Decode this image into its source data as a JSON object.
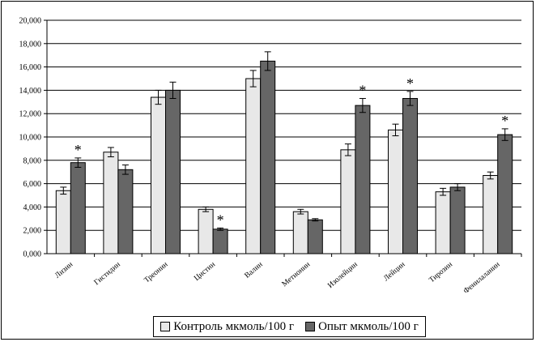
{
  "chart_data": {
    "type": "bar",
    "categories": [
      "Лизин",
      "Гистидин",
      "Треонин",
      "Цистин",
      "Валин",
      "Метионин",
      "Изолейцин",
      "Лейцин",
      "Тирозин",
      "Фенилаланин"
    ],
    "series": [
      {
        "name": "Контроль мкмоль/100 г",
        "color": "#e8e8e8",
        "values": [
          5.4,
          8.7,
          13.4,
          3.8,
          15.0,
          3.6,
          8.9,
          10.6,
          5.3,
          6.7
        ],
        "errors": [
          0.3,
          0.4,
          0.6,
          0.2,
          0.7,
          0.2,
          0.5,
          0.5,
          0.3,
          0.3
        ]
      },
      {
        "name": "Опыт мкмоль/100 г",
        "color": "#666666",
        "values": [
          7.8,
          7.2,
          14.0,
          2.1,
          16.5,
          2.9,
          12.7,
          13.3,
          5.7,
          10.2
        ],
        "errors": [
          0.4,
          0.4,
          0.7,
          0.1,
          0.8,
          0.1,
          0.6,
          0.6,
          0.3,
          0.5
        ]
      }
    ],
    "significance": [
      true,
      false,
      false,
      true,
      false,
      false,
      true,
      true,
      false,
      true
    ],
    "significance_marker": "*",
    "yticks": [
      "0,000",
      "2,000",
      "4,000",
      "6,000",
      "8,000",
      "10,000",
      "12,000",
      "14,000",
      "16,000",
      "18,000",
      "20,000"
    ],
    "ylim": [
      0,
      20
    ],
    "grid": true,
    "legend_position": "bottom",
    "xlabel": "",
    "ylabel": "",
    "title": ""
  }
}
